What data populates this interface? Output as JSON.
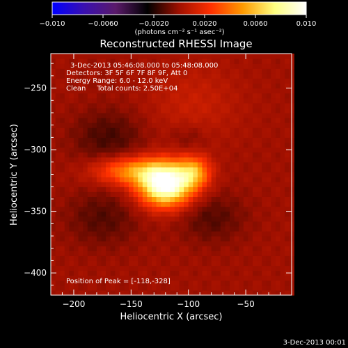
{
  "chart_data": {
    "type": "heatmap",
    "title": "Reconstructed RHESSI Image",
    "xlabel": "Heliocentric X (arcsec)",
    "ylabel": "Heliocentric Y (arcsec)",
    "xlim": [
      -220,
      -10
    ],
    "ylim": [
      -418,
      -222
    ],
    "x_ticks": [
      -200,
      -150,
      -100,
      -50
    ],
    "x_tick_labels": [
      "−200",
      "−150",
      "−100",
      "−50"
    ],
    "y_ticks": [
      -250,
      -300,
      -350,
      -400
    ],
    "y_tick_labels": [
      "−250",
      "−300",
      "−350",
      "−400"
    ],
    "colorbar": {
      "range": [
        -0.01,
        0.01
      ],
      "ticks": [
        -0.01,
        -0.006,
        -0.002,
        0.002,
        0.006,
        0.01
      ],
      "tick_labels": [
        "−0.010",
        "−0.0060",
        "−0.0020",
        "0.0020",
        "0.0060",
        "0.010"
      ],
      "unit_text": "(photons cm⁻² s⁻¹ asec⁻²)",
      "colors": [
        "#0000ff",
        "#3a10b0",
        "#5a1a6a",
        "#000000",
        "#a01000",
        "#ff3000",
        "#ff9a00",
        "#ffff80",
        "#ffffff"
      ]
    },
    "info_lines": [
      "3-Dec-2013 05:46:08.000 to 05:48:08.000",
      "Detectors: 3F 5F 6F 7F 8F 9F, Att 0",
      "Energy Range: 6.0 - 12.0 keV",
      "Clean     Total counts: 2.50E+04"
    ],
    "peak_label": "Position of Peak = [-118,-328]",
    "peak": {
      "x": -118,
      "y": -328,
      "value": 0.01
    },
    "sources": [
      {
        "x": -120,
        "y": -328,
        "sx": 16,
        "sy": 12,
        "amp": 0.0105
      },
      {
        "x": -150,
        "y": -317,
        "sx": 22,
        "sy": 8,
        "amp": 0.0045
      },
      {
        "x": -95,
        "y": -318,
        "sx": 10,
        "sy": 9,
        "amp": 0.0045
      },
      {
        "x": -95,
        "y": -262,
        "sx": 28,
        "sy": 22,
        "amp": 0.001
      }
    ],
    "negative_regions": [
      {
        "x": -170,
        "y": -290,
        "sx": 22,
        "sy": 16,
        "amp": -0.0014
      },
      {
        "x": -175,
        "y": -355,
        "sx": 22,
        "sy": 16,
        "amp": -0.0012
      },
      {
        "x": -80,
        "y": -355,
        "sx": 20,
        "sy": 14,
        "amp": -0.0012
      },
      {
        "x": -100,
        "y": -290,
        "sx": 12,
        "sy": 8,
        "amp": -0.0008
      }
    ]
  },
  "footer": {
    "timestamp": "3-Dec-2013 00:01"
  }
}
